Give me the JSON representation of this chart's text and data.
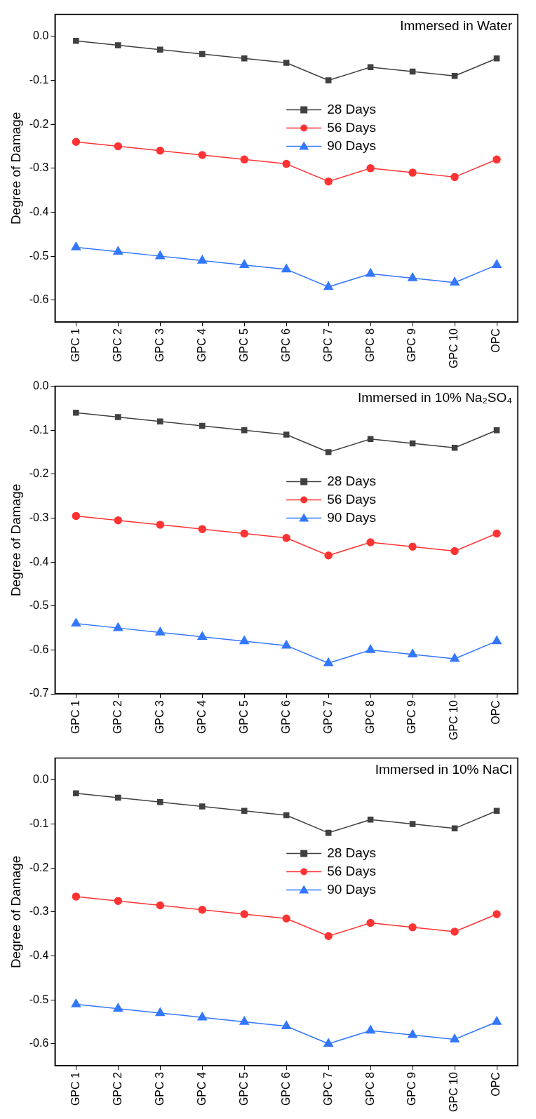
{
  "chart_data": [
    {
      "type": "line",
      "title": "Immersed in Water",
      "ylabel": "Degree of Damage",
      "categories": [
        "GPC 1",
        "GPC 2",
        "GPC 3",
        "GPC 4",
        "GPC 5",
        "GPC 6",
        "GPC 7",
        "GPC 8",
        "GPC 9",
        "GPC 10",
        "OPC"
      ],
      "ylim": [
        -0.65,
        0.05
      ],
      "yticks": [
        {
          "value": 0,
          "label": "0.0"
        },
        {
          "value": -0.1,
          "label": "-0.1"
        },
        {
          "value": -0.2,
          "label": "-0.2"
        },
        {
          "value": -0.3,
          "label": "-0.3"
        },
        {
          "value": -0.4,
          "label": "-0.4"
        },
        {
          "value": -0.5,
          "label": "-0.5"
        },
        {
          "value": -0.6,
          "label": "-0.6"
        }
      ],
      "grid": false,
      "legend": "center",
      "series": [
        {
          "name": "28 Days",
          "color": "#404040",
          "marker": "square",
          "values": [
            -0.01,
            -0.02,
            -0.03,
            -0.04,
            -0.05,
            -0.06,
            -0.1,
            -0.07,
            -0.08,
            -0.09,
            -0.05
          ]
        },
        {
          "name": "56 Days",
          "color": "#ff3333",
          "marker": "circle",
          "values": [
            -0.24,
            -0.25,
            -0.26,
            -0.27,
            -0.28,
            -0.29,
            -0.33,
            -0.3,
            -0.31,
            -0.32,
            -0.28
          ]
        },
        {
          "name": "90 Days",
          "color": "#3377ff",
          "marker": "triangle",
          "values": [
            -0.48,
            -0.49,
            -0.5,
            -0.51,
            -0.52,
            -0.53,
            -0.57,
            -0.54,
            -0.55,
            -0.56,
            -0.52
          ]
        }
      ]
    },
    {
      "type": "line",
      "title": "Immersed in 10% Na₂SO₄",
      "ylabel": "Degree of Damage",
      "categories": [
        "GPC 1",
        "GPC 2",
        "GPC 3",
        "GPC 4",
        "GPC 5",
        "GPC 6",
        "GPC 7",
        "GPC 8",
        "GPC 9",
        "GPC 10",
        "OPC"
      ],
      "ylim": [
        -0.7,
        0
      ],
      "yticks": [
        {
          "value": 0,
          "label": "0.0"
        },
        {
          "value": -0.1,
          "label": "-0.1"
        },
        {
          "value": -0.2,
          "label": "-0.2"
        },
        {
          "value": -0.3,
          "label": "-0.3"
        },
        {
          "value": -0.4,
          "label": "-0.4"
        },
        {
          "value": -0.5,
          "label": "-0.5"
        },
        {
          "value": -0.6,
          "label": "-0.6"
        },
        {
          "value": -0.7,
          "label": "-0.7"
        }
      ],
      "grid": false,
      "legend": "center",
      "series": [
        {
          "name": "28 Days",
          "color": "#404040",
          "marker": "square",
          "values": [
            -0.06,
            -0.07,
            -0.08,
            -0.09,
            -0.1,
            -0.11,
            -0.15,
            -0.12,
            -0.13,
            -0.14,
            -0.1
          ]
        },
        {
          "name": "56 Days",
          "color": "#ff3333",
          "marker": "circle",
          "values": [
            -0.295,
            -0.305,
            -0.315,
            -0.325,
            -0.335,
            -0.345,
            -0.385,
            -0.355,
            -0.365,
            -0.375,
            -0.335
          ]
        },
        {
          "name": "90 Days",
          "color": "#3377ff",
          "marker": "triangle",
          "values": [
            -0.54,
            -0.55,
            -0.56,
            -0.57,
            -0.58,
            -0.59,
            -0.63,
            -0.6,
            -0.61,
            -0.62,
            -0.58
          ]
        }
      ]
    },
    {
      "type": "line",
      "title": "Immersed in 10% NaCl",
      "ylabel": "Degree of Damage",
      "categories": [
        "GPC 1",
        "GPC 2",
        "GPC 3",
        "GPC 4",
        "GPC 5",
        "GPC 6",
        "GPC 7",
        "GPC 8",
        "GPC 9",
        "GPC 10",
        "OPC"
      ],
      "ylim": [
        -0.65,
        0.05
      ],
      "yticks": [
        {
          "value": 0,
          "label": "0.0"
        },
        {
          "value": -0.1,
          "label": "-0.1"
        },
        {
          "value": -0.2,
          "label": "-0.2"
        },
        {
          "value": -0.3,
          "label": "-0.3"
        },
        {
          "value": -0.4,
          "label": "-0.4"
        },
        {
          "value": -0.5,
          "label": "-0.5"
        },
        {
          "value": -0.6,
          "label": "-0.6"
        }
      ],
      "grid": false,
      "legend": "center",
      "series": [
        {
          "name": "28 Days",
          "color": "#404040",
          "marker": "square",
          "values": [
            -0.03,
            -0.04,
            -0.05,
            -0.06,
            -0.07,
            -0.08,
            -0.12,
            -0.09,
            -0.1,
            -0.11,
            -0.07
          ]
        },
        {
          "name": "56 Days",
          "color": "#ff3333",
          "marker": "circle",
          "values": [
            -0.265,
            -0.275,
            -0.285,
            -0.295,
            -0.305,
            -0.315,
            -0.355,
            -0.325,
            -0.335,
            -0.345,
            -0.305
          ]
        },
        {
          "name": "90 Days",
          "color": "#3377ff",
          "marker": "triangle",
          "values": [
            -0.51,
            -0.52,
            -0.53,
            -0.54,
            -0.55,
            -0.56,
            -0.6,
            -0.57,
            -0.58,
            -0.59,
            -0.55
          ]
        }
      ]
    }
  ]
}
